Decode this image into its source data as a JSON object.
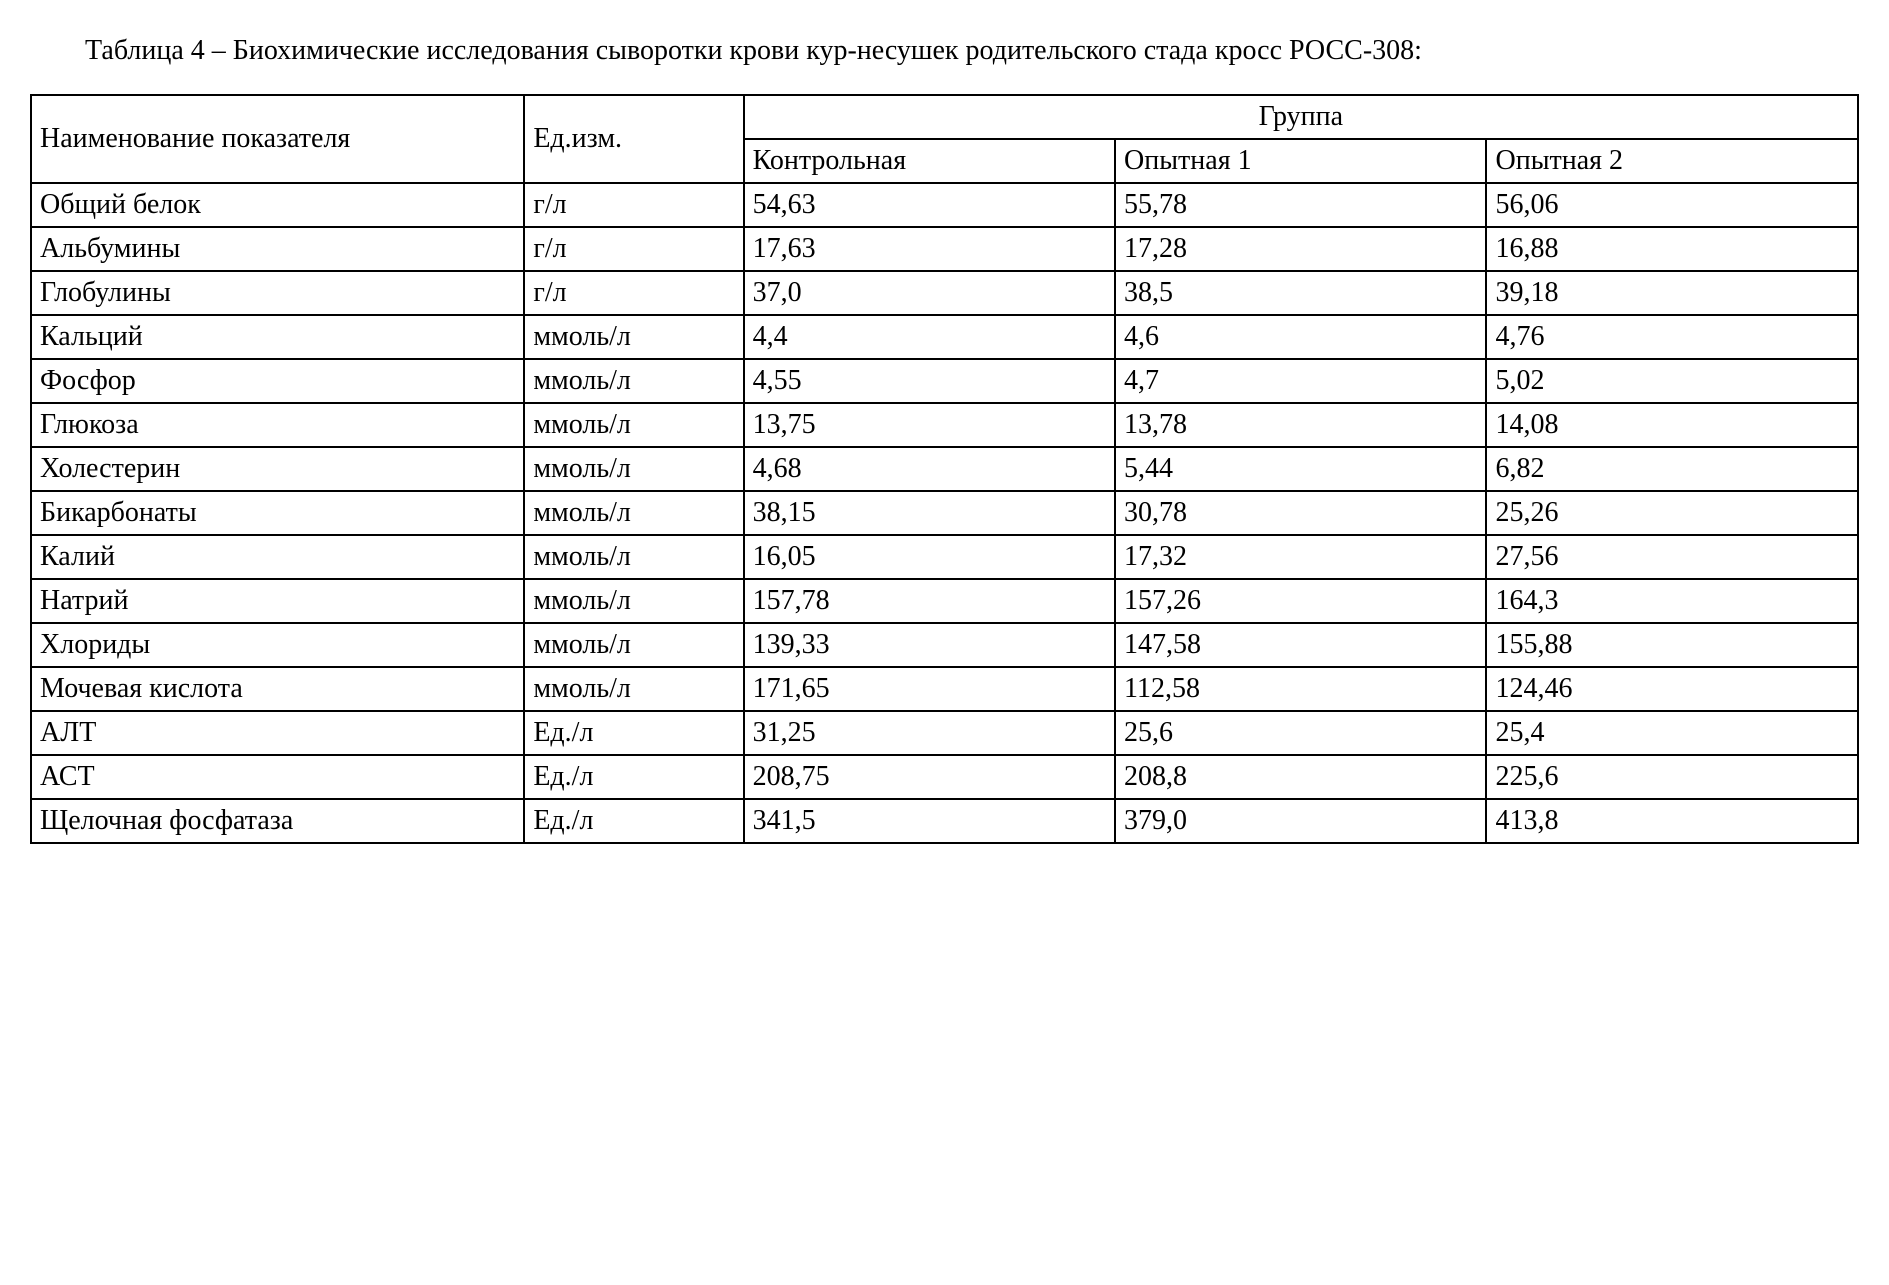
{
  "caption": "Таблица 4 – Биохимические исследования сыворотки крови кур-несушек родительского стада кросс РОСС-308:",
  "table": {
    "headers": {
      "indicator": "Наименование показателя",
      "unit": "Ед.изм.",
      "group": "Группа",
      "subgroups": [
        "Контрольная",
        "Опытная 1",
        "Опытная 2"
      ]
    },
    "rows": [
      {
        "name": "Общий белок",
        "unit": "г/л",
        "v1": "54,63",
        "v2": "55,78",
        "v3": "56,06"
      },
      {
        "name": "Альбумины",
        "unit": "г/л",
        "v1": "17,63",
        "v2": "17,28",
        "v3": "16,88"
      },
      {
        "name": "Глобулины",
        "unit": "г/л",
        "v1": "37,0",
        "v2": "38,5",
        "v3": "39,18"
      },
      {
        "name": "Кальций",
        "unit": "ммоль/л",
        "v1": "4,4",
        "v2": "4,6",
        "v3": "4,76"
      },
      {
        "name": "Фосфор",
        "unit": "ммоль/л",
        "v1": "4,55",
        "v2": "4,7",
        "v3": "5,02"
      },
      {
        "name": "Глюкоза",
        "unit": "ммоль/л",
        "v1": "13,75",
        "v2": "13,78",
        "v3": "14,08"
      },
      {
        "name": "Холестерин",
        "unit": "ммоль/л",
        "v1": "4,68",
        "v2": "5,44",
        "v3": "6,82"
      },
      {
        "name": "Бикарбонаты",
        "unit": "ммоль/л",
        "v1": "38,15",
        "v2": "30,78",
        "v3": "25,26"
      },
      {
        "name": "Калий",
        "unit": "ммоль/л",
        "v1": "16,05",
        "v2": "17,32",
        "v3": "27,56"
      },
      {
        "name": "Натрий",
        "unit": "ммоль/л",
        "v1": "157,78",
        "v2": "157,26",
        "v3": "164,3"
      },
      {
        "name": "Хлориды",
        "unit": "ммоль/л",
        "v1": "139,33",
        "v2": "147,58",
        "v3": "155,88"
      },
      {
        "name": "Мочевая кислота",
        "unit": "ммоль/л",
        "v1": "171,65",
        "v2": "112,58",
        "v3": "124,46"
      },
      {
        "name": "АЛТ",
        "unit": "Ед./л",
        "v1": "31,25",
        "v2": "25,6",
        "v3": "25,4"
      },
      {
        "name": "АСТ",
        "unit": "Ед./л",
        "v1": "208,75",
        "v2": "208,8",
        "v3": "225,6"
      },
      {
        "name": "Щелочная фосфатаза",
        "unit": "Ед./л",
        "v1": "341,5",
        "v2": "379,0",
        "v3": "413,8"
      }
    ],
    "border_color": "#000000",
    "text_color": "#000000",
    "background_color": "#ffffff",
    "font_family": "Times New Roman",
    "font_size_pt": 14
  }
}
